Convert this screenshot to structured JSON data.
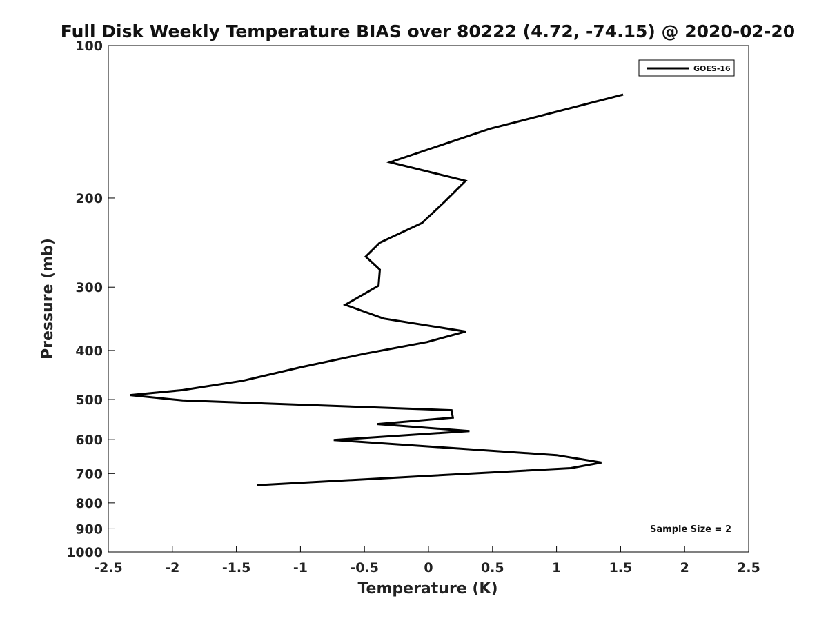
{
  "chart_data": {
    "type": "line",
    "title": "Full Disk Weekly Temperature BIAS over 80222 (4.72, -74.15) @ 2020-02-20",
    "xlabel": "Temperature (K)",
    "ylabel": "Pressure (mb)",
    "xlim": [
      -2.5,
      2.5
    ],
    "ylim": [
      1000,
      100
    ],
    "y_scale": "log",
    "x_ticks": [
      -2.5,
      -2,
      -1.5,
      -1,
      -0.5,
      0,
      0.5,
      1,
      1.5,
      2,
      2.5
    ],
    "x_tick_labels": [
      "-2.5",
      "-2",
      "-1.5",
      "-1",
      "-0.5",
      "0",
      "0.5",
      "1",
      "1.5",
      "2",
      "2.5"
    ],
    "y_ticks": [
      100,
      200,
      300,
      400,
      500,
      600,
      700,
      800,
      900,
      1000
    ],
    "y_tick_labels": [
      "100",
      "200",
      "300",
      "400",
      "500",
      "600",
      "700",
      "800",
      "900",
      "1000"
    ],
    "grid": false,
    "legend_position": "top-right",
    "series": [
      {
        "name": "GOES-16",
        "color": "#000000",
        "x": [
          1.52,
          0.48,
          -0.3,
          0.29,
          0.13,
          -0.05,
          -0.38,
          -0.49,
          -0.38,
          -0.39,
          -0.65,
          -0.35,
          0.29,
          -0.01,
          -0.5,
          -1.0,
          -1.45,
          -1.92,
          -2.33,
          -1.92,
          0.18,
          0.19,
          -0.4,
          0.32,
          -0.74,
          1.0,
          1.35,
          1.11,
          -1.34
        ],
        "y": [
          125,
          146,
          170,
          185,
          203,
          224,
          245,
          261,
          277,
          298,
          325,
          346,
          367,
          385,
          406,
          432,
          459,
          479,
          490,
          502,
          525,
          543,
          559,
          577,
          601,
          644,
          666,
          683,
          738
        ]
      }
    ],
    "annotations": [
      {
        "text": "Sample Size = 2",
        "position": "bottom-right"
      }
    ]
  }
}
